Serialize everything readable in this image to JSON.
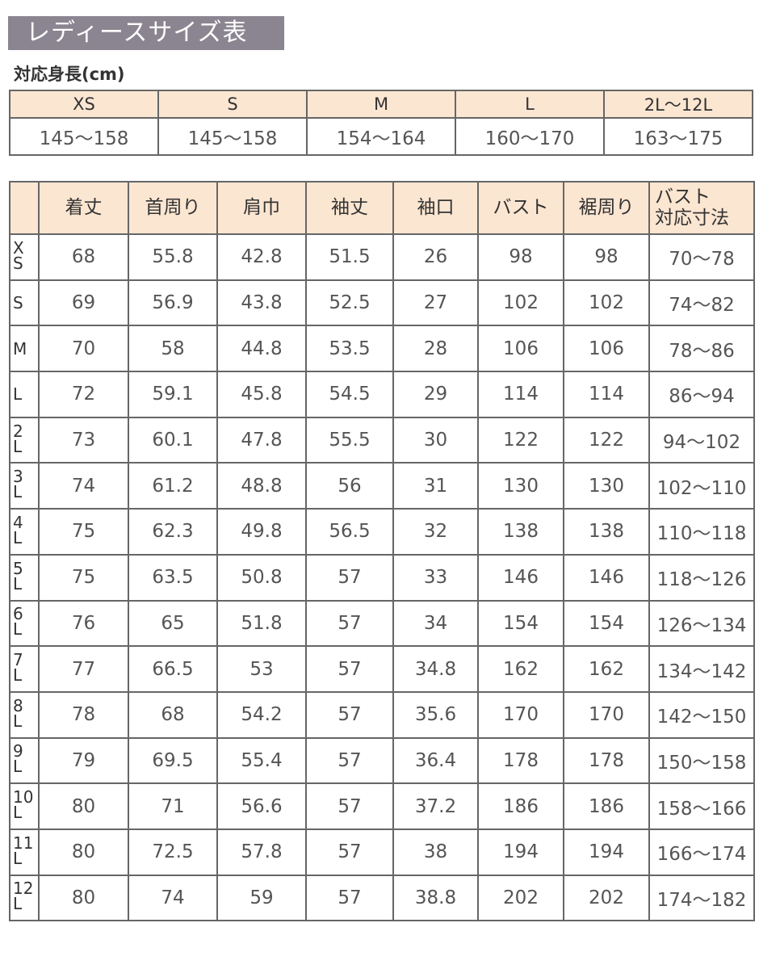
{
  "title": "レディースサイズ表",
  "height_label": "対応身長(cm)",
  "height_table": {
    "sizes": [
      "XS",
      "S",
      "M",
      "L",
      "2L〜12L"
    ],
    "heights": [
      "145〜158",
      "145〜158",
      "154〜164",
      "160〜170",
      "163〜175"
    ]
  },
  "size_table": {
    "headers": [
      "",
      "着丈",
      "首周り",
      "肩巾",
      "袖丈",
      "袖口",
      "バスト",
      "裾周り",
      "バスト\n対応寸法"
    ],
    "rows": [
      {
        "size": "XS",
        "values": [
          "68",
          "55.8",
          "42.8",
          "51.5",
          "26",
          "98",
          "98",
          "70〜78"
        ]
      },
      {
        "size": "S",
        "values": [
          "69",
          "56.9",
          "43.8",
          "52.5",
          "27",
          "102",
          "102",
          "74〜82"
        ]
      },
      {
        "size": "M",
        "values": [
          "70",
          "58",
          "44.8",
          "53.5",
          "28",
          "106",
          "106",
          "78〜86"
        ]
      },
      {
        "size": "L",
        "values": [
          "72",
          "59.1",
          "45.8",
          "54.5",
          "29",
          "114",
          "114",
          "86〜94"
        ]
      },
      {
        "size": "2L",
        "values": [
          "73",
          "60.1",
          "47.8",
          "55.5",
          "30",
          "122",
          "122",
          "94〜102"
        ]
      },
      {
        "size": "3L",
        "values": [
          "74",
          "61.2",
          "48.8",
          "56",
          "31",
          "130",
          "130",
          "102〜110"
        ]
      },
      {
        "size": "4L",
        "values": [
          "75",
          "62.3",
          "49.8",
          "56.5",
          "32",
          "138",
          "138",
          "110〜118"
        ]
      },
      {
        "size": "5L",
        "values": [
          "75",
          "63.5",
          "50.8",
          "57",
          "33",
          "146",
          "146",
          "118〜126"
        ]
      },
      {
        "size": "6L",
        "values": [
          "76",
          "65",
          "51.8",
          "57",
          "34",
          "154",
          "154",
          "126〜134"
        ]
      },
      {
        "size": "7L",
        "values": [
          "77",
          "66.5",
          "53",
          "57",
          "34.8",
          "162",
          "162",
          "134〜142"
        ]
      },
      {
        "size": "8L",
        "values": [
          "78",
          "68",
          "54.2",
          "57",
          "35.6",
          "170",
          "170",
          "142〜150"
        ]
      },
      {
        "size": "9L",
        "values": [
          "79",
          "69.5",
          "55.4",
          "57",
          "36.4",
          "178",
          "178",
          "150〜158"
        ]
      },
      {
        "size": "10L",
        "values": [
          "80",
          "71",
          "56.6",
          "57",
          "37.2",
          "186",
          "186",
          "158〜166"
        ]
      },
      {
        "size": "11L",
        "values": [
          "80",
          "72.5",
          "57.8",
          "57",
          "38",
          "194",
          "194",
          "166〜174"
        ]
      },
      {
        "size": "12L",
        "values": [
          "80",
          "74",
          "59",
          "57",
          "38.8",
          "202",
          "202",
          "174〜182"
        ]
      }
    ]
  },
  "colors": {
    "title_bg": "#8a8590",
    "header_bg": "#fbe6d2",
    "border": "#666666"
  }
}
